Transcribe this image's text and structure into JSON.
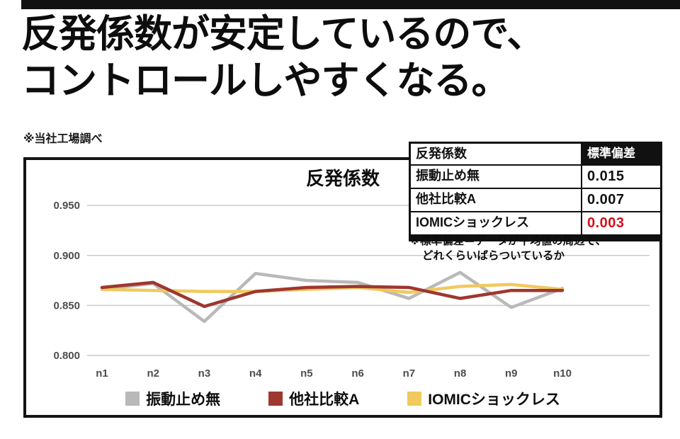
{
  "page": {
    "headline_line1": "反発係数が安定しているので、",
    "headline_line2": "コントロールしやすくなる。",
    "source_note": "※当社工場調べ"
  },
  "table": {
    "header": [
      "反発係数",
      "標準偏差"
    ],
    "rows": [
      {
        "label": "振動止め無",
        "value": "0.015",
        "highlight": false
      },
      {
        "label": "他社比較A",
        "value": "0.007",
        "highlight": false
      },
      {
        "label": "IOMICショックレス",
        "value": "0.003",
        "highlight": true
      }
    ],
    "footnote_line1": "※標準偏差＝データが平均値の周辺で、",
    "footnote_line2": "どれくらいばらついているか"
  },
  "chart_data": {
    "type": "line",
    "title": "反発係数",
    "x": [
      "n1",
      "n2",
      "n3",
      "n4",
      "n5",
      "n6",
      "n7",
      "n8",
      "n9",
      "n10"
    ],
    "series": [
      {
        "name": "振動止め無",
        "color": "#b9b9b9",
        "values": [
          0.866,
          0.872,
          0.834,
          0.882,
          0.875,
          0.873,
          0.857,
          0.883,
          0.848,
          0.867
        ]
      },
      {
        "name": "他社比較A",
        "color": "#9e372f",
        "values": [
          0.868,
          0.873,
          0.849,
          0.864,
          0.868,
          0.869,
          0.868,
          0.857,
          0.865,
          0.865
        ]
      },
      {
        "name": "IOMICショックレス",
        "color": "#f0c95f",
        "values": [
          0.866,
          0.865,
          0.864,
          0.864,
          0.866,
          0.868,
          0.863,
          0.869,
          0.871,
          0.866
        ]
      }
    ],
    "ylim": [
      0.8,
      0.96
    ],
    "yticks": [
      0.95,
      0.9,
      0.85,
      0.8
    ],
    "grid": true,
    "legend_position": "bottom",
    "draw_order": [
      0,
      2,
      1
    ],
    "tick_color": "#4d4d4d",
    "grid_color": "#c9c9c9"
  }
}
